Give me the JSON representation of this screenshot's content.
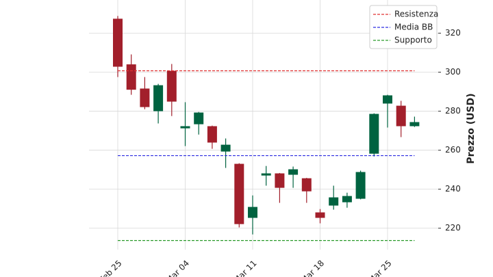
{
  "chart_data": {
    "type": "candlestick",
    "y_label": "Prezzo (USD)",
    "categories": [
      "Feb 25",
      null,
      null,
      null,
      null,
      "Mar 04",
      null,
      null,
      null,
      null,
      "Mar 11",
      null,
      null,
      null,
      null,
      "Mar 18",
      null,
      null,
      null,
      null,
      "Mar 25",
      null,
      null
    ],
    "open": [
      327.4,
      304.0,
      291.6,
      280.0,
      300.7,
      271.2,
      273.3,
      272.3,
      259.3,
      253.0,
      225.3,
      247.0,
      248.1,
      247.4,
      245.6,
      228.1,
      231.6,
      233.3,
      235.1,
      258.2,
      283.9,
      282.8,
      272.3
    ],
    "high": [
      328.8,
      309.1,
      297.5,
      294.0,
      304.2,
      284.6,
      279.6,
      272.6,
      266.0,
      253.3,
      236.8,
      251.9,
      248.3,
      251.6,
      245.8,
      229.8,
      241.8,
      238.2,
      249.5,
      278.9,
      288.4,
      285.3,
      277.2
    ],
    "low": [
      297.5,
      288.4,
      281.0,
      273.7,
      277.5,
      262.1,
      268.0,
      260.7,
      250.9,
      220.4,
      216.8,
      241.8,
      233.0,
      240.7,
      233.0,
      222.5,
      229.5,
      230.5,
      234.8,
      256.8,
      271.6,
      266.7,
      271.9
    ],
    "close": [
      302.8,
      291.0,
      282.1,
      293.3,
      284.9,
      272.3,
      279.3,
      263.9,
      262.8,
      222.1,
      230.9,
      248.1,
      240.7,
      250.2,
      238.9,
      225.3,
      235.8,
      236.5,
      248.8,
      278.6,
      288.1,
      272.3,
      274.4
    ],
    "up_color": "#006340",
    "down_color": "#a21f2b",
    "lines": [
      {
        "name": "Resistenza",
        "color": "#e03030",
        "value": 300.7
      },
      {
        "name": "Media BB",
        "color": "#2a2ae0",
        "value": 257.2
      },
      {
        "name": "Supporto",
        "color": "#2a9a2a",
        "value": 213.7
      }
    ],
    "ylim": [
      209,
      337
    ],
    "yticks": [
      220,
      240,
      260,
      280,
      300,
      320
    ],
    "grid": true,
    "legend": "upper right"
  }
}
